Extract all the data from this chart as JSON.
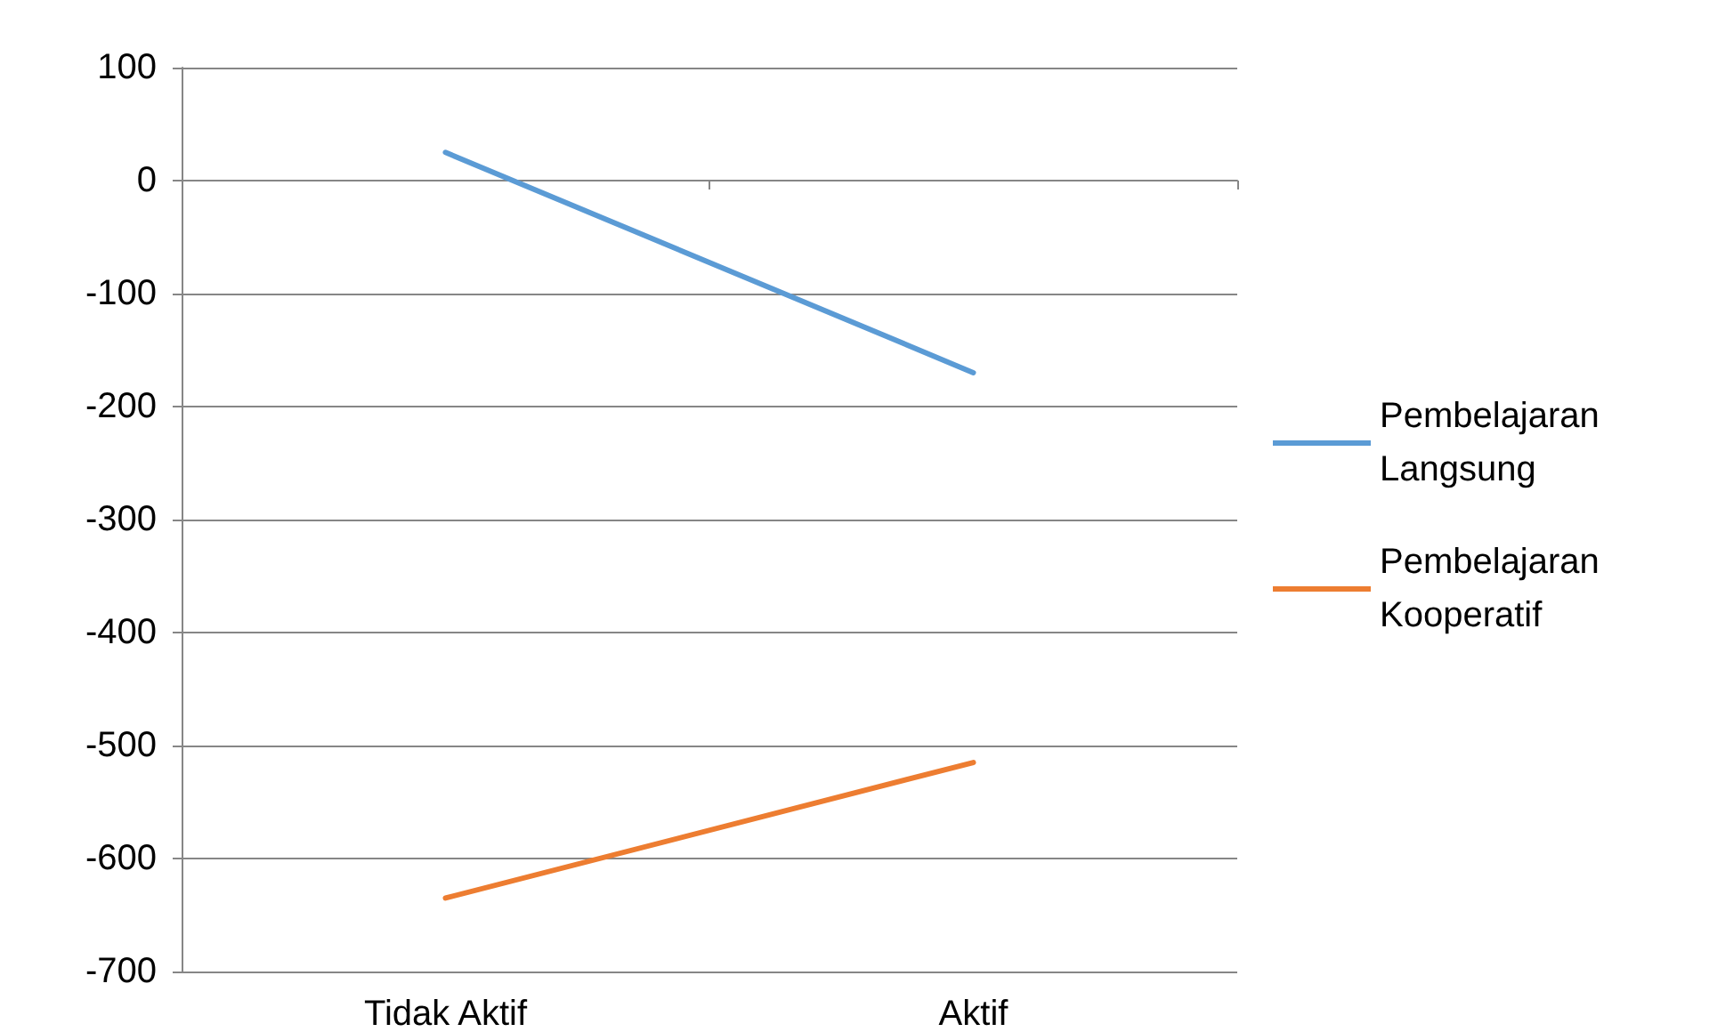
{
  "chart_data": {
    "type": "line",
    "categories": [
      "Tidak Aktif",
      "Aktif"
    ],
    "series": [
      {
        "name": "Pembelajaran Langsung",
        "color": "#5b9bd5",
        "values": [
          25,
          -170
        ]
      },
      {
        "name": "Pembelajaran Kooperatif",
        "color": "#ed7d31",
        "values": [
          -635,
          -515
        ]
      }
    ],
    "ylim": [
      -700,
      100
    ],
    "yticks": [
      -700,
      -600,
      -500,
      -400,
      -300,
      -200,
      -100,
      0,
      100
    ],
    "grid": "y",
    "legend": "right",
    "marker": "none",
    "line_style": "solid"
  }
}
